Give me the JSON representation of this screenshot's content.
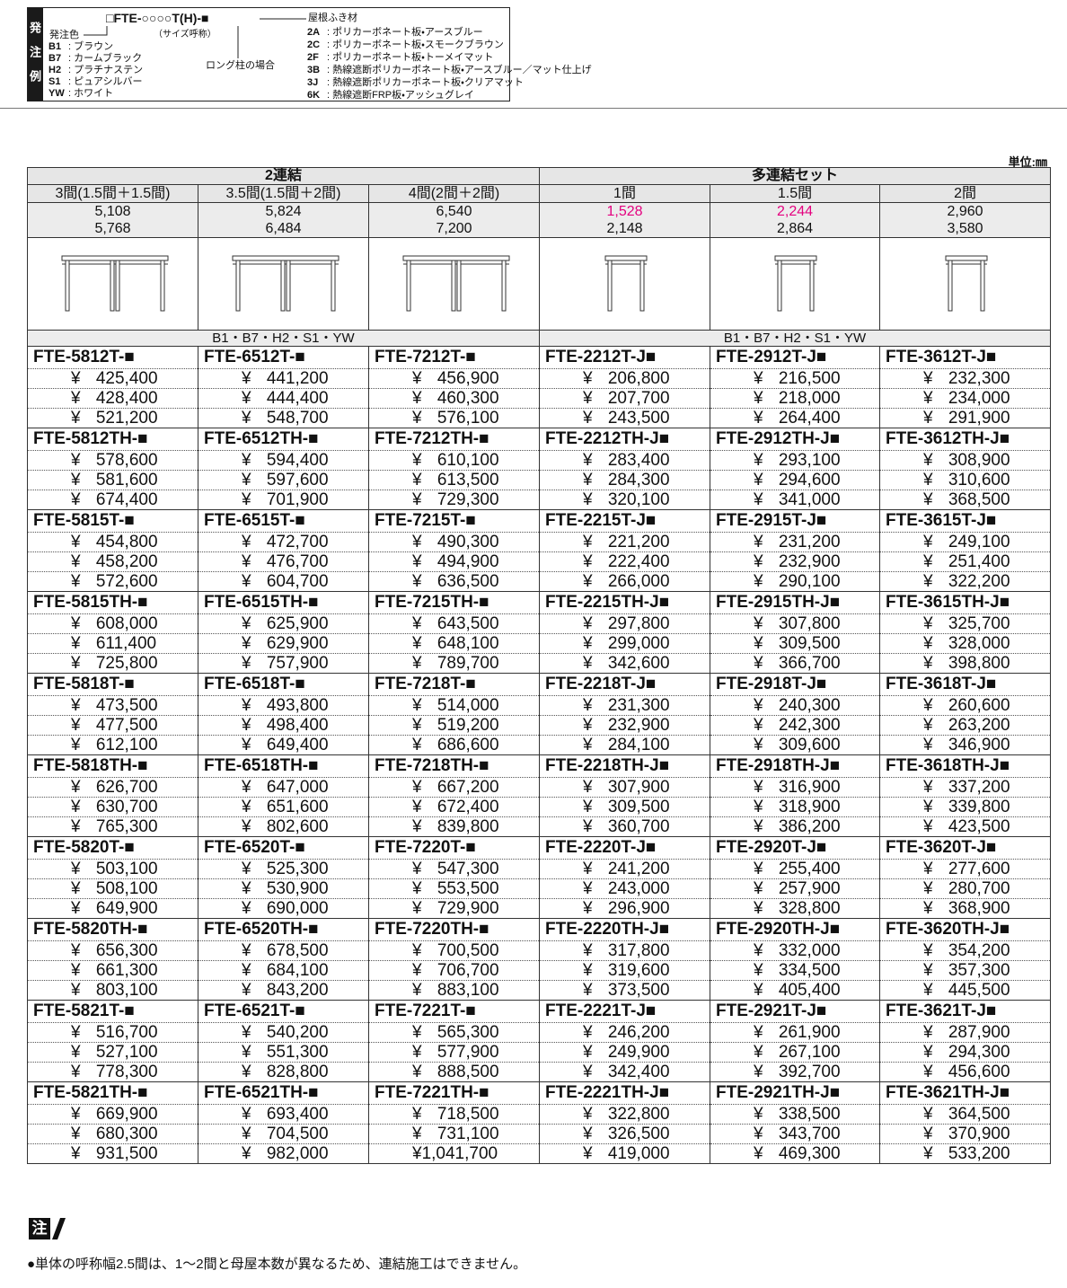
{
  "order_example": {
    "label": "発注例",
    "code": "□FTE-○○○○T(H)-■",
    "size_note": "（サイズ呼称）",
    "color_heading": "発注色",
    "colors": [
      {
        "code": "B1",
        "name": ": ブラウン"
      },
      {
        "code": "B7",
        "name": ": カームブラック"
      },
      {
        "code": "H2",
        "name": ": プラチナステン"
      },
      {
        "code": "S1",
        "name": ": ピュアシルバー"
      },
      {
        "code": "YW",
        "name": ": ホワイト"
      }
    ],
    "long_post": "ロング柱の場合",
    "roof_heading": "屋根ふき材",
    "roofs": [
      {
        "code": "2A",
        "name": ": ポリカーボネート板・アースブルー"
      },
      {
        "code": "2C",
        "name": ": ポリカーボネート板・スモークブラウン"
      },
      {
        "code": "2F",
        "name": ": ポリカーボネート板・トーメイマット"
      },
      {
        "code": "3B",
        "name": ": 熱線遮断ポリカーボネート板・アースブルー／マット仕上げ"
      },
      {
        "code": "3J",
        "name": ": 熱線遮断ポリカーボネート板・クリアマット"
      },
      {
        "code": "6K",
        "name": ": 熱線遮断FRP板・アッシュグレイ"
      }
    ]
  },
  "unit": "単位:㎜",
  "table": {
    "groups": [
      "2連結",
      "多連結セット"
    ],
    "columns": [
      "3間(1.5間＋1.5間)",
      "3.5間(1.5間＋2間)",
      "4間(2間＋2間)",
      "1間",
      "1.5間",
      "2間"
    ],
    "widths": [
      [
        "5,108",
        "5,824",
        "6,540",
        "1,528",
        "2,244",
        "2,960"
      ],
      [
        "5,768",
        "6,484",
        "7,200",
        "2,148",
        "2,864",
        "3,580"
      ]
    ],
    "colors": [
      "B1・B7・H2・S1・YW",
      "B1・B7・H2・S1・YW"
    ],
    "rows": [
      [
        {
          "model": "FTE-5812T-■",
          "prices": [
            "¥ 425,400",
            "¥ 428,400",
            "¥ 521,200"
          ]
        },
        {
          "model": "FTE-6512T-■",
          "prices": [
            "¥ 441,200",
            "¥ 444,400",
            "¥ 548,700"
          ]
        },
        {
          "model": "FTE-7212T-■",
          "prices": [
            "¥ 456,900",
            "¥ 460,300",
            "¥ 576,100"
          ]
        },
        {
          "model": "FTE-2212T-J■",
          "prices": [
            "¥ 206,800",
            "¥ 207,700",
            "¥ 243,500"
          ]
        },
        {
          "model": "FTE-2912T-J■",
          "prices": [
            "¥ 216,500",
            "¥ 218,000",
            "¥ 264,400"
          ]
        },
        {
          "model": "FTE-3612T-J■",
          "prices": [
            "¥ 232,300",
            "¥ 234,000",
            "¥ 291,900"
          ]
        }
      ],
      [
        {
          "model": "FTE-5812TH-■",
          "prices": [
            "¥ 578,600",
            "¥ 581,600",
            "¥ 674,400"
          ]
        },
        {
          "model": "FTE-6512TH-■",
          "prices": [
            "¥ 594,400",
            "¥ 597,600",
            "¥ 701,900"
          ]
        },
        {
          "model": "FTE-7212TH-■",
          "prices": [
            "¥ 610,100",
            "¥ 613,500",
            "¥ 729,300"
          ]
        },
        {
          "model": "FTE-2212TH-J■",
          "prices": [
            "¥ 283,400",
            "¥ 284,300",
            "¥ 320,100"
          ]
        },
        {
          "model": "FTE-2912TH-J■",
          "prices": [
            "¥ 293,100",
            "¥ 294,600",
            "¥ 341,000"
          ]
        },
        {
          "model": "FTE-3612TH-J■",
          "prices": [
            "¥ 308,900",
            "¥ 310,600",
            "¥ 368,500"
          ]
        }
      ],
      [
        {
          "model": "FTE-5815T-■",
          "prices": [
            "¥ 454,800",
            "¥ 458,200",
            "¥ 572,600"
          ]
        },
        {
          "model": "FTE-6515T-■",
          "prices": [
            "¥ 472,700",
            "¥ 476,700",
            "¥ 604,700"
          ]
        },
        {
          "model": "FTE-7215T-■",
          "prices": [
            "¥ 490,300",
            "¥ 494,900",
            "¥ 636,500"
          ]
        },
        {
          "model": "FTE-2215T-J■",
          "prices": [
            "¥ 221,200",
            "¥ 222,400",
            "¥ 266,000"
          ]
        },
        {
          "model": "FTE-2915T-J■",
          "prices": [
            "¥ 231,200",
            "¥ 232,900",
            "¥ 290,100"
          ]
        },
        {
          "model": "FTE-3615T-J■",
          "prices": [
            "¥ 249,100",
            "¥ 251,400",
            "¥ 322,200"
          ]
        }
      ],
      [
        {
          "model": "FTE-5815TH-■",
          "prices": [
            "¥ 608,000",
            "¥ 611,400",
            "¥ 725,800"
          ]
        },
        {
          "model": "FTE-6515TH-■",
          "prices": [
            "¥ 625,900",
            "¥ 629,900",
            "¥ 757,900"
          ]
        },
        {
          "model": "FTE-7215TH-■",
          "prices": [
            "¥ 643,500",
            "¥ 648,100",
            "¥ 789,700"
          ]
        },
        {
          "model": "FTE-2215TH-J■",
          "prices": [
            "¥ 297,800",
            "¥ 299,000",
            "¥ 342,600"
          ]
        },
        {
          "model": "FTE-2915TH-J■",
          "prices": [
            "¥ 307,800",
            "¥ 309,500",
            "¥ 366,700"
          ]
        },
        {
          "model": "FTE-3615TH-J■",
          "prices": [
            "¥ 325,700",
            "¥ 328,000",
            "¥ 398,800"
          ]
        }
      ],
      [
        {
          "model": "FTE-5818T-■",
          "prices": [
            "¥ 473,500",
            "¥ 477,500",
            "¥ 612,100"
          ]
        },
        {
          "model": "FTE-6518T-■",
          "prices": [
            "¥ 493,800",
            "¥ 498,400",
            "¥ 649,400"
          ]
        },
        {
          "model": "FTE-7218T-■",
          "prices": [
            "¥ 514,000",
            "¥ 519,200",
            "¥ 686,600"
          ]
        },
        {
          "model": "FTE-2218T-J■",
          "prices": [
            "¥ 231,300",
            "¥ 232,900",
            "¥ 284,100"
          ]
        },
        {
          "model": "FTE-2918T-J■",
          "prices": [
            "¥ 240,300",
            "¥ 242,300",
            "¥ 309,600"
          ]
        },
        {
          "model": "FTE-3618T-J■",
          "prices": [
            "¥ 260,600",
            "¥ 263,200",
            "¥ 346,900"
          ]
        }
      ],
      [
        {
          "model": "FTE-5818TH-■",
          "prices": [
            "¥ 626,700",
            "¥ 630,700",
            "¥ 765,300"
          ]
        },
        {
          "model": "FTE-6518TH-■",
          "prices": [
            "¥ 647,000",
            "¥ 651,600",
            "¥ 802,600"
          ]
        },
        {
          "model": "FTE-7218TH-■",
          "prices": [
            "¥ 667,200",
            "¥ 672,400",
            "¥ 839,800"
          ]
        },
        {
          "model": "FTE-2218TH-J■",
          "prices": [
            "¥ 307,900",
            "¥ 309,500",
            "¥ 360,700"
          ]
        },
        {
          "model": "FTE-2918TH-J■",
          "prices": [
            "¥ 316,900",
            "¥ 318,900",
            "¥ 386,200"
          ]
        },
        {
          "model": "FTE-3618TH-J■",
          "prices": [
            "¥ 337,200",
            "¥ 339,800",
            "¥ 423,500"
          ]
        }
      ],
      [
        {
          "model": "FTE-5820T-■",
          "prices": [
            "¥ 503,100",
            "¥ 508,100",
            "¥ 649,900"
          ]
        },
        {
          "model": "FTE-6520T-■",
          "prices": [
            "¥ 525,300",
            "¥ 530,900",
            "¥ 690,000"
          ]
        },
        {
          "model": "FTE-7220T-■",
          "prices": [
            "¥ 547,300",
            "¥ 553,500",
            "¥ 729,900"
          ]
        },
        {
          "model": "FTE-2220T-J■",
          "prices": [
            "¥ 241,200",
            "¥ 243,000",
            "¥ 296,900"
          ]
        },
        {
          "model": "FTE-2920T-J■",
          "prices": [
            "¥ 255,400",
            "¥ 257,900",
            "¥ 328,800"
          ]
        },
        {
          "model": "FTE-3620T-J■",
          "prices": [
            "¥ 277,600",
            "¥ 280,700",
            "¥ 368,900"
          ]
        }
      ],
      [
        {
          "model": "FTE-5820TH-■",
          "prices": [
            "¥ 656,300",
            "¥ 661,300",
            "¥ 803,100"
          ]
        },
        {
          "model": "FTE-6520TH-■",
          "prices": [
            "¥ 678,500",
            "¥ 684,100",
            "¥ 843,200"
          ]
        },
        {
          "model": "FTE-7220TH-■",
          "prices": [
            "¥ 700,500",
            "¥ 706,700",
            "¥ 883,100"
          ]
        },
        {
          "model": "FTE-2220TH-J■",
          "prices": [
            "¥ 317,800",
            "¥ 319,600",
            "¥ 373,500"
          ]
        },
        {
          "model": "FTE-2920TH-J■",
          "prices": [
            "¥ 332,000",
            "¥ 334,500",
            "¥ 405,400"
          ]
        },
        {
          "model": "FTE-3620TH-J■",
          "prices": [
            "¥ 354,200",
            "¥ 357,300",
            "¥ 445,500"
          ]
        }
      ],
      [
        {
          "model": "FTE-5821T-■",
          "prices": [
            "¥ 516,700",
            "¥ 527,100",
            "¥ 778,300"
          ]
        },
        {
          "model": "FTE-6521T-■",
          "prices": [
            "¥ 540,200",
            "¥ 551,300",
            "¥ 828,800"
          ]
        },
        {
          "model": "FTE-7221T-■",
          "prices": [
            "¥ 565,300",
            "¥ 577,900",
            "¥ 888,500"
          ]
        },
        {
          "model": "FTE-2221T-J■",
          "prices": [
            "¥ 246,200",
            "¥ 249,900",
            "¥ 342,400"
          ]
        },
        {
          "model": "FTE-2921T-J■",
          "prices": [
            "¥ 261,900",
            "¥ 267,100",
            "¥ 392,700"
          ]
        },
        {
          "model": "FTE-3621T-J■",
          "prices": [
            "¥ 287,900",
            "¥ 294,300",
            "¥ 456,600"
          ]
        }
      ],
      [
        {
          "model": "FTE-5821TH-■",
          "prices": [
            "¥ 669,900",
            "¥ 680,300",
            "¥ 931,500"
          ]
        },
        {
          "model": "FTE-6521TH-■",
          "prices": [
            "¥ 693,400",
            "¥ 704,500",
            "¥ 982,000"
          ]
        },
        {
          "model": "FTE-7221TH-■",
          "prices": [
            "¥ 718,500",
            "¥ 731,100",
            "¥1,041,700"
          ]
        },
        {
          "model": "FTE-2221TH-J■",
          "prices": [
            "¥ 322,800",
            "¥ 326,500",
            "¥ 419,000"
          ]
        },
        {
          "model": "FTE-2921TH-J■",
          "prices": [
            "¥ 338,500",
            "¥ 343,700",
            "¥ 469,300"
          ]
        },
        {
          "model": "FTE-3621TH-J■",
          "prices": [
            "¥ 364,500",
            "¥ 370,900",
            "¥ 533,200"
          ]
        }
      ]
    ]
  },
  "notes": {
    "heading": "注",
    "items": [
      "●単体の呼称幅2.5間は、1～2間と母屋本数が異なるため、連結施工はできません。"
    ]
  }
}
